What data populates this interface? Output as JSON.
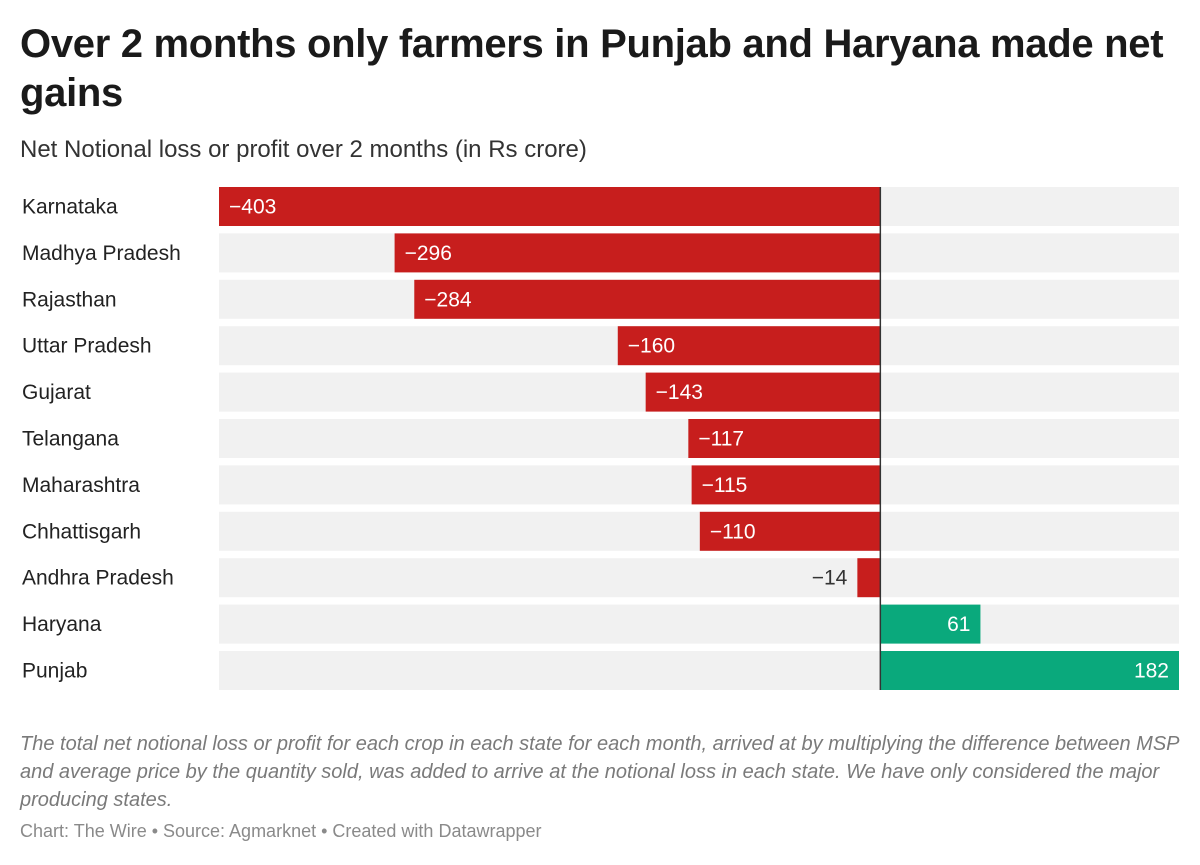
{
  "header": {
    "title": "Over 2 months only farmers in Punjab and Haryana made net gains",
    "subtitle": "Net Notional loss or profit over 2 months (in Rs crore)"
  },
  "footer": {
    "notes": "The total net notional loss or profit for each crop in each state for each month, arrived at by multiplying the difference between MSP and average price by the quantity sold, was added to arrive at the notional loss in each state. We have only considered the major producing states.",
    "byline": "Chart: The Wire • Source: Agmarknet • Created with Datawrapper"
  },
  "colors": {
    "negative": "#c71e1d",
    "positive": "#0aa97c",
    "track": "#f1f1f1",
    "axis": "#333333"
  },
  "chart_data": {
    "type": "bar",
    "orientation": "horizontal",
    "title": "Over 2 months only farmers in Punjab and Haryana made net gains",
    "subtitle": "Net Notional loss or profit over 2 months (in Rs crore)",
    "categories": [
      "Karnataka",
      "Madhya Pradesh",
      "Rajasthan",
      "Uttar Pradesh",
      "Gujarat",
      "Telangana",
      "Maharashtra",
      "Chhattisgarh",
      "Andhra Pradesh",
      "Haryana",
      "Punjab"
    ],
    "values": [
      -403,
      -296,
      -284,
      -160,
      -143,
      -117,
      -115,
      -110,
      -14,
      61,
      182
    ],
    "labels": [
      "−403",
      "−296",
      "−284",
      "−160",
      "−143",
      "−117",
      "−115",
      "−110",
      "−14",
      "61",
      "182"
    ],
    "xlim": [
      -403,
      182
    ],
    "xlabel": "",
    "ylabel": "",
    "grid": false
  }
}
